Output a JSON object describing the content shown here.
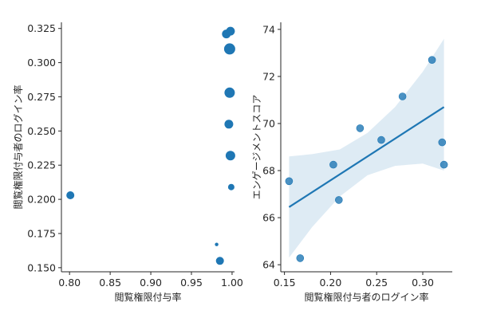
{
  "chart_data": [
    {
      "type": "scatter",
      "xlabel": "閲覧権限付与率",
      "ylabel": "閲覧権限付与者のログイン率",
      "xlim": [
        0.79,
        1.003
      ],
      "ylim": [
        0.147,
        0.3295
      ],
      "xticks": [
        "0.80",
        "0.85",
        "0.90",
        "0.95",
        "1.00"
      ],
      "yticks": [
        "0.150",
        "0.175",
        "0.200",
        "0.225",
        "0.250",
        "0.275",
        "0.300",
        "0.325"
      ],
      "color": "#1f77b4",
      "points": [
        {
          "x": 0.801,
          "y": 0.203,
          "size": 5
        },
        {
          "x": 0.981,
          "y": 0.167,
          "size": 2.2
        },
        {
          "x": 0.985,
          "y": 0.155,
          "size": 5
        },
        {
          "x": 0.993,
          "y": 0.321,
          "size": 5.5
        },
        {
          "x": 0.998,
          "y": 0.323,
          "size": 5.5
        },
        {
          "x": 0.997,
          "y": 0.31,
          "size": 7
        },
        {
          "x": 0.997,
          "y": 0.278,
          "size": 6.5
        },
        {
          "x": 0.996,
          "y": 0.255,
          "size": 5.5
        },
        {
          "x": 0.998,
          "y": 0.232,
          "size": 6
        },
        {
          "x": 0.999,
          "y": 0.209,
          "size": 4
        }
      ]
    },
    {
      "type": "scatter",
      "xlabel": "閲覧権限付与者のログイン率",
      "ylabel": "エンゲージメントスコア",
      "xlim": [
        0.146,
        0.332
      ],
      "ylim": [
        63.7,
        74.3
      ],
      "xticks": [
        "0.15",
        "0.20",
        "0.25",
        "0.30"
      ],
      "yticks": [
        "64",
        "66",
        "68",
        "70",
        "72",
        "74"
      ],
      "color": "#1f77b4",
      "points": [
        {
          "x": 0.155,
          "y": 67.55
        },
        {
          "x": 0.167,
          "y": 64.28
        },
        {
          "x": 0.203,
          "y": 68.25
        },
        {
          "x": 0.209,
          "y": 66.75
        },
        {
          "x": 0.232,
          "y": 69.8
        },
        {
          "x": 0.255,
          "y": 69.3
        },
        {
          "x": 0.278,
          "y": 71.15
        },
        {
          "x": 0.31,
          "y": 72.7
        },
        {
          "x": 0.321,
          "y": 69.2
        },
        {
          "x": 0.323,
          "y": 68.25
        }
      ],
      "regression": {
        "x": [
          0.155,
          0.323
        ],
        "y": [
          66.45,
          70.7
        ]
      },
      "confidence_band": {
        "x": [
          0.155,
          0.18,
          0.21,
          0.24,
          0.27,
          0.3,
          0.323
        ],
        "lower": [
          64.3,
          65.6,
          66.9,
          67.8,
          68.2,
          68.3,
          68.0
        ],
        "upper": [
          68.6,
          68.7,
          68.9,
          69.6,
          70.7,
          72.2,
          73.6
        ]
      }
    }
  ]
}
